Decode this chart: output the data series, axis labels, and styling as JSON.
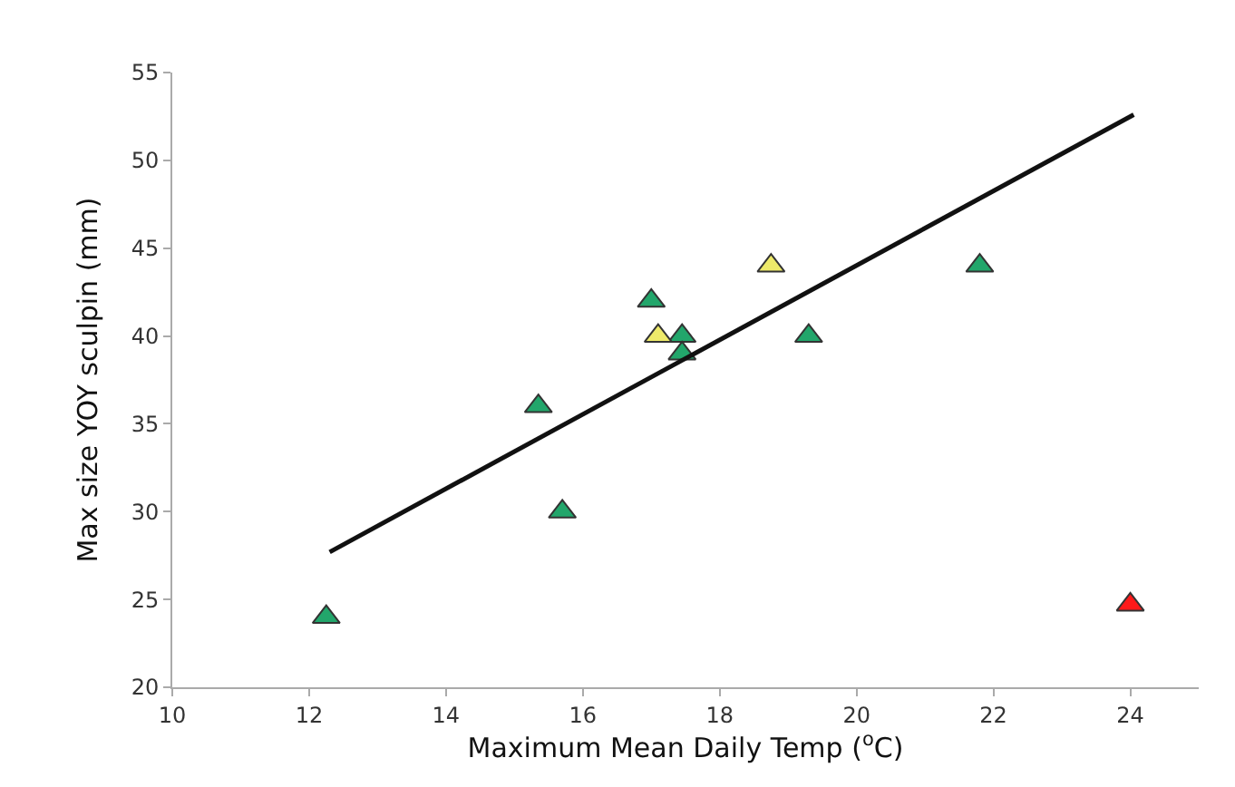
{
  "chart_data": {
    "type": "scatter",
    "xlabel": "Maximum Mean Daily Temp ($^{o}$C)",
    "ylabel": "Max size YOY sculpin (mm)",
    "xlim": [
      10,
      25
    ],
    "xticks": [
      10,
      12,
      14,
      16,
      18,
      20,
      22,
      24
    ],
    "ylim": [
      20,
      55
    ],
    "yticks": [
      20,
      25,
      30,
      35,
      40,
      45,
      50,
      55
    ],
    "grid": false,
    "legend": false,
    "marker": "triangle",
    "series": [
      {
        "color": "#22a66b",
        "x": [
          12.25,
          15.35,
          15.7,
          17,
          17.45,
          17.45,
          19.3,
          21.8
        ],
        "values": [
          24,
          36,
          30,
          42,
          40,
          39,
          40,
          44
        ]
      },
      {
        "color": "#eeea6a",
        "x": [
          17.1,
          18.75
        ],
        "values": [
          40,
          44
        ]
      },
      {
        "color": "#ff1a1a",
        "x": [
          24
        ],
        "values": [
          24.7
        ]
      },
      {
        "type": "line",
        "color": "#111111",
        "x": [
          12.3,
          24.05
        ],
        "values": [
          27.7,
          52.6
        ],
        "marker": "none",
        "line_style": "solid"
      }
    ]
  }
}
